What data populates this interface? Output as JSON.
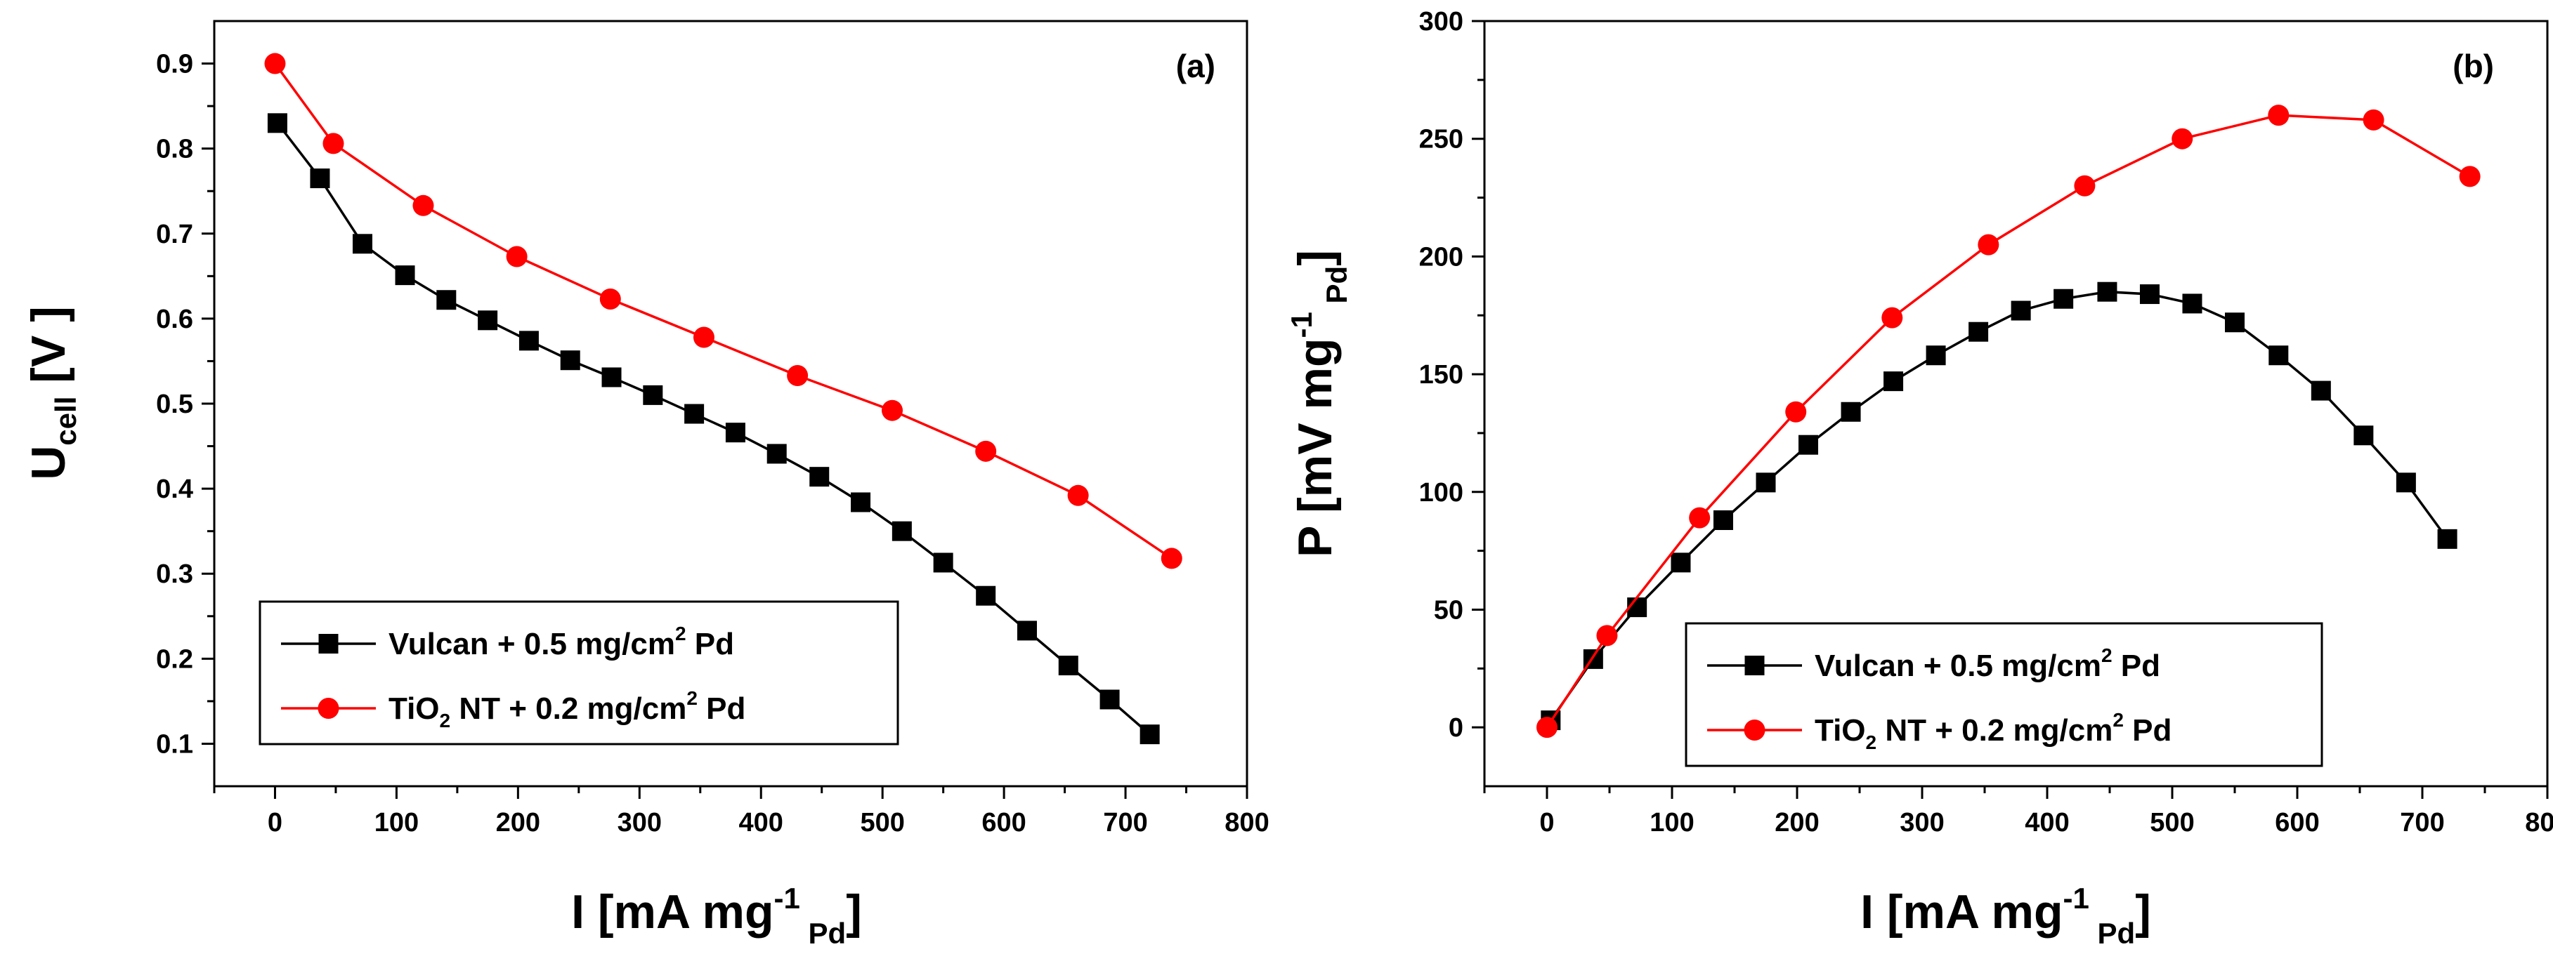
{
  "chart_data": [
    {
      "type": "line",
      "panel_label": "(a)",
      "title": "",
      "xlabel": {
        "main": "I [mA mg",
        "sup": "-1",
        "sub": "Pd",
        "close": "]"
      },
      "ylabel": {
        "main": "U",
        "sub": "cell",
        "rest": " [V ]"
      },
      "xlim": [
        -50,
        800
      ],
      "ylim": [
        0.05,
        0.95
      ],
      "xticks": [
        0,
        100,
        200,
        300,
        400,
        500,
        600,
        700,
        800
      ],
      "yticks": [
        0.1,
        0.2,
        0.3,
        0.4,
        0.5,
        0.6,
        0.7,
        0.8,
        0.9
      ],
      "legend_position": "bottom-left",
      "series": [
        {
          "legend": {
            "pre": "Vulcan + 0.5 mg/cm",
            "sup": "2",
            "post": " Pd"
          },
          "color": "#000000",
          "marker": "square",
          "x": [
            2,
            37,
            72,
            107,
            141,
            175,
            209,
            243,
            277,
            311,
            345,
            379,
            413,
            448,
            482,
            516,
            550,
            585,
            619,
            653,
            687,
            720
          ],
          "y": [
            0.83,
            0.765,
            0.688,
            0.651,
            0.622,
            0.598,
            0.574,
            0.551,
            0.531,
            0.51,
            0.488,
            0.466,
            0.441,
            0.414,
            0.384,
            0.35,
            0.313,
            0.274,
            0.233,
            0.192,
            0.152,
            0.111
          ]
        },
        {
          "legend": {
            "pre": "TiO",
            "sub": "2",
            "mid": " NT + 0.2 mg/cm",
            "sup": "2",
            "post": " Pd"
          },
          "color": "#ff0000",
          "marker": "circle",
          "x": [
            0,
            48,
            122,
            199,
            276,
            353,
            430,
            508,
            585,
            661,
            738
          ],
          "y": [
            0.9,
            0.806,
            0.733,
            0.673,
            0.623,
            0.578,
            0.533,
            0.492,
            0.444,
            0.392,
            0.318
          ]
        }
      ]
    },
    {
      "type": "line",
      "panel_label": "(b)",
      "title": "",
      "xlabel": {
        "main": "I [mA mg",
        "sup": "-1",
        "sub": "Pd",
        "close": "]"
      },
      "ylabel": {
        "main": "P [mV mg",
        "sup": "-1",
        "sub": "Pd",
        "close": "]"
      },
      "xlim": [
        -50,
        800
      ],
      "ylim": [
        -25,
        300
      ],
      "xticks": [
        0,
        100,
        200,
        300,
        400,
        500,
        600,
        700,
        800
      ],
      "yticks": [
        0,
        50,
        100,
        150,
        200,
        250,
        300
      ],
      "legend_position": "bottom-center",
      "series": [
        {
          "legend": {
            "pre": "Vulcan + 0.5 mg/cm",
            "sup": "2",
            "post": " Pd"
          },
          "color": "#000000",
          "marker": "square",
          "x": [
            3,
            37,
            72,
            107,
            141,
            175,
            209,
            243,
            277,
            311,
            345,
            379,
            413,
            448,
            482,
            516,
            550,
            585,
            619,
            653,
            687,
            720
          ],
          "y": [
            3,
            29,
            51,
            70,
            88,
            104,
            120,
            134,
            147,
            158,
            168,
            177,
            182,
            185,
            184,
            180,
            172,
            158,
            143,
            124,
            104,
            80
          ]
        },
        {
          "legend": {
            "pre": "TiO",
            "sub": "2",
            "mid": " NT + 0.2 mg/cm",
            "sup": "2",
            "post": " Pd"
          },
          "color": "#ff0000",
          "marker": "circle",
          "x": [
            0,
            48,
            122,
            199,
            276,
            353,
            430,
            508,
            585,
            661,
            738
          ],
          "y": [
            0,
            39,
            89,
            134,
            174,
            205,
            230,
            250,
            260,
            258,
            234
          ]
        }
      ]
    }
  ]
}
